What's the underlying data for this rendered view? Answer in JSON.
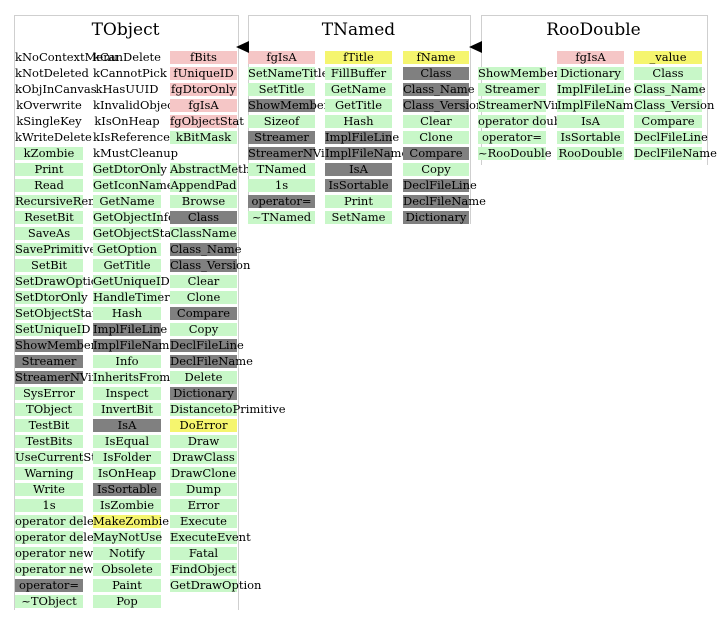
{
  "boxes": [
    {
      "title": "TObject",
      "columns": [
        [
          {
            "t": "kNoContextMenu",
            "k": "none"
          },
          {
            "t": "kNotDeleted",
            "k": "none"
          },
          {
            "t": "kObjInCanvas",
            "k": "none"
          },
          {
            "t": "kOverwrite",
            "k": "none"
          },
          {
            "t": "kSingleKey",
            "k": "none"
          },
          {
            "t": "kWriteDelete",
            "k": "none"
          },
          {
            "t": "kZombie",
            "k": "plain"
          },
          {
            "t": "Print",
            "k": "plain"
          },
          {
            "t": "Read",
            "k": "plain"
          },
          {
            "t": "RecursiveRemove",
            "k": "plain"
          },
          {
            "t": "ResetBit",
            "k": "plain"
          },
          {
            "t": "SaveAs",
            "k": "plain"
          },
          {
            "t": "SavePrimitive",
            "k": "plain"
          },
          {
            "t": "SetBit",
            "k": "plain"
          },
          {
            "t": "SetDrawOption",
            "k": "plain"
          },
          {
            "t": "SetDtorOnly",
            "k": "plain"
          },
          {
            "t": "SetObjectStat",
            "k": "plain"
          },
          {
            "t": "SetUniqueID",
            "k": "plain"
          },
          {
            "t": "ShowMembers",
            "k": "dark"
          },
          {
            "t": "Streamer",
            "k": "dark"
          },
          {
            "t": "StreamerNVirtual",
            "k": "dark"
          },
          {
            "t": "SysError",
            "k": "plain"
          },
          {
            "t": "TObject",
            "k": "plain"
          },
          {
            "t": "TestBit",
            "k": "plain"
          },
          {
            "t": "TestBits",
            "k": "plain"
          },
          {
            "t": "UseCurrentStyle",
            "k": "plain"
          },
          {
            "t": "Warning",
            "k": "plain"
          },
          {
            "t": "Write",
            "k": "plain"
          },
          {
            "t": "1s",
            "k": "plain"
          },
          {
            "t": "operator delete",
            "k": "plain"
          },
          {
            "t": "operator delete[]",
            "k": "plain"
          },
          {
            "t": "operator new",
            "k": "plain"
          },
          {
            "t": "operator new[]",
            "k": "plain"
          },
          {
            "t": "operator=",
            "k": "dark"
          },
          {
            "t": "~TObject",
            "k": "plain"
          }
        ],
        [
          {
            "t": "kCanDelete",
            "k": "none"
          },
          {
            "t": "kCannotPick",
            "k": "none"
          },
          {
            "t": "kHasUUID",
            "k": "none"
          },
          {
            "t": "kInvalidObject",
            "k": "none"
          },
          {
            "t": "kIsOnHeap",
            "k": "none"
          },
          {
            "t": "kIsReferenced",
            "k": "none"
          },
          {
            "t": "kMustCleanup",
            "k": "none"
          },
          {
            "t": "GetDtorOnly",
            "k": "plain"
          },
          {
            "t": "GetIconName",
            "k": "plain"
          },
          {
            "t": "GetName",
            "k": "plain"
          },
          {
            "t": "GetObjectInfo",
            "k": "plain"
          },
          {
            "t": "GetObjectStat",
            "k": "plain"
          },
          {
            "t": "GetOption",
            "k": "plain"
          },
          {
            "t": "GetTitle",
            "k": "plain"
          },
          {
            "t": "GetUniqueID",
            "k": "plain"
          },
          {
            "t": "HandleTimer",
            "k": "plain"
          },
          {
            "t": "Hash",
            "k": "plain"
          },
          {
            "t": "ImplFileLine",
            "k": "dark"
          },
          {
            "t": "ImplFileName",
            "k": "dark"
          },
          {
            "t": "Info",
            "k": "plain"
          },
          {
            "t": "InheritsFrom",
            "k": "plain"
          },
          {
            "t": "Inspect",
            "k": "plain"
          },
          {
            "t": "InvertBit",
            "k": "plain"
          },
          {
            "t": "IsA",
            "k": "dark"
          },
          {
            "t": "IsEqual",
            "k": "plain"
          },
          {
            "t": "IsFolder",
            "k": "plain"
          },
          {
            "t": "IsOnHeap",
            "k": "plain"
          },
          {
            "t": "IsSortable",
            "k": "dark"
          },
          {
            "t": "IsZombie",
            "k": "plain"
          },
          {
            "t": "MakeZombie",
            "k": "hi"
          },
          {
            "t": "MayNotUse",
            "k": "plain"
          },
          {
            "t": "Notify",
            "k": "plain"
          },
          {
            "t": "Obsolete",
            "k": "plain"
          },
          {
            "t": "Paint",
            "k": "plain"
          },
          {
            "t": "Pop",
            "k": "plain"
          }
        ],
        [
          {
            "t": "fBits",
            "k": "data"
          },
          {
            "t": "fUniqueID",
            "k": "data"
          },
          {
            "t": "fgDtorOnly",
            "k": "data"
          },
          {
            "t": "fgIsA",
            "k": "data"
          },
          {
            "t": "fgObjectStat",
            "k": "data"
          },
          {
            "t": "kBitMask",
            "k": "plain"
          },
          {
            "t": "",
            "k": "none"
          },
          {
            "t": "AbstractMethod",
            "k": "plain"
          },
          {
            "t": "AppendPad",
            "k": "plain"
          },
          {
            "t": "Browse",
            "k": "plain"
          },
          {
            "t": "Class",
            "k": "dark"
          },
          {
            "t": "ClassName",
            "k": "plain"
          },
          {
            "t": "Class_Name",
            "k": "dark"
          },
          {
            "t": "Class_Version",
            "k": "dark"
          },
          {
            "t": "Clear",
            "k": "plain"
          },
          {
            "t": "Clone",
            "k": "plain"
          },
          {
            "t": "Compare",
            "k": "dark"
          },
          {
            "t": "Copy",
            "k": "plain"
          },
          {
            "t": "DeclFileLine",
            "k": "dark"
          },
          {
            "t": "DeclFileName",
            "k": "dark"
          },
          {
            "t": "Delete",
            "k": "plain"
          },
          {
            "t": "Dictionary",
            "k": "dark"
          },
          {
            "t": "DistancetoPrimitive",
            "k": "plain"
          },
          {
            "t": "DoError",
            "k": "hi"
          },
          {
            "t": "Draw",
            "k": "plain"
          },
          {
            "t": "DrawClass",
            "k": "plain"
          },
          {
            "t": "DrawClone",
            "k": "plain"
          },
          {
            "t": "Dump",
            "k": "plain"
          },
          {
            "t": "Error",
            "k": "plain"
          },
          {
            "t": "Execute",
            "k": "plain"
          },
          {
            "t": "ExecuteEvent",
            "k": "plain"
          },
          {
            "t": "Fatal",
            "k": "plain"
          },
          {
            "t": "FindObject",
            "k": "plain"
          },
          {
            "t": "GetDrawOption",
            "k": "plain"
          }
        ]
      ]
    },
    {
      "title": "TNamed",
      "columns": [
        [
          {
            "t": "fgIsA",
            "k": "data"
          },
          {
            "t": "SetNameTitle",
            "k": "plain"
          },
          {
            "t": "SetTitle",
            "k": "plain"
          },
          {
            "t": "ShowMembers",
            "k": "dark"
          },
          {
            "t": "Sizeof",
            "k": "plain"
          },
          {
            "t": "Streamer",
            "k": "dark"
          },
          {
            "t": "StreamerNVirtual",
            "k": "dark"
          },
          {
            "t": "TNamed",
            "k": "plain"
          },
          {
            "t": "1s",
            "k": "plain"
          },
          {
            "t": "operator=",
            "k": "dark"
          },
          {
            "t": "~TNamed",
            "k": "plain"
          }
        ],
        [
          {
            "t": "fTitle",
            "k": "hi"
          },
          {
            "t": "FillBuffer",
            "k": "plain"
          },
          {
            "t": "GetName",
            "k": "plain"
          },
          {
            "t": "GetTitle",
            "k": "plain"
          },
          {
            "t": "Hash",
            "k": "plain"
          },
          {
            "t": "ImplFileLine",
            "k": "dark"
          },
          {
            "t": "ImplFileName",
            "k": "dark"
          },
          {
            "t": "IsA",
            "k": "dark"
          },
          {
            "t": "IsSortable",
            "k": "dark"
          },
          {
            "t": "Print",
            "k": "plain"
          },
          {
            "t": "SetName",
            "k": "plain"
          }
        ],
        [
          {
            "t": "fName",
            "k": "hi"
          },
          {
            "t": "Class",
            "k": "dark"
          },
          {
            "t": "Class_Name",
            "k": "dark"
          },
          {
            "t": "Class_Version",
            "k": "dark"
          },
          {
            "t": "Clear",
            "k": "plain"
          },
          {
            "t": "Clone",
            "k": "plain"
          },
          {
            "t": "Compare",
            "k": "dark"
          },
          {
            "t": "Copy",
            "k": "plain"
          },
          {
            "t": "DeclFileLine",
            "k": "dark"
          },
          {
            "t": "DeclFileName",
            "k": "dark"
          },
          {
            "t": "Dictionary",
            "k": "dark"
          }
        ]
      ]
    },
    {
      "title": "RooDouble",
      "columns": [
        [
          {
            "t": "",
            "k": "none"
          },
          {
            "t": "ShowMembers",
            "k": "plain"
          },
          {
            "t": "Streamer",
            "k": "plain"
          },
          {
            "t": "StreamerNVirtual",
            "k": "plain"
          },
          {
            "t": "operator double",
            "k": "plain"
          },
          {
            "t": "operator=",
            "k": "plain"
          },
          {
            "t": "~RooDouble",
            "k": "plain"
          }
        ],
        [
          {
            "t": "fgIsA",
            "k": "data"
          },
          {
            "t": "Dictionary",
            "k": "plain"
          },
          {
            "t": "ImplFileLine",
            "k": "plain"
          },
          {
            "t": "ImplFileName",
            "k": "plain"
          },
          {
            "t": "IsA",
            "k": "plain"
          },
          {
            "t": "IsSortable",
            "k": "plain"
          },
          {
            "t": "RooDouble",
            "k": "plain"
          }
        ],
        [
          {
            "t": "_value",
            "k": "hi"
          },
          {
            "t": "Class",
            "k": "plain"
          },
          {
            "t": "Class_Name",
            "k": "plain"
          },
          {
            "t": "Class_Version",
            "k": "plain"
          },
          {
            "t": "Compare",
            "k": "plain"
          },
          {
            "t": "DeclFileLine",
            "k": "plain"
          },
          {
            "t": "DeclFileName",
            "k": "plain"
          }
        ]
      ]
    }
  ],
  "arrows": [
    "TNamed → TObject",
    "RooDouble → TNamed"
  ]
}
